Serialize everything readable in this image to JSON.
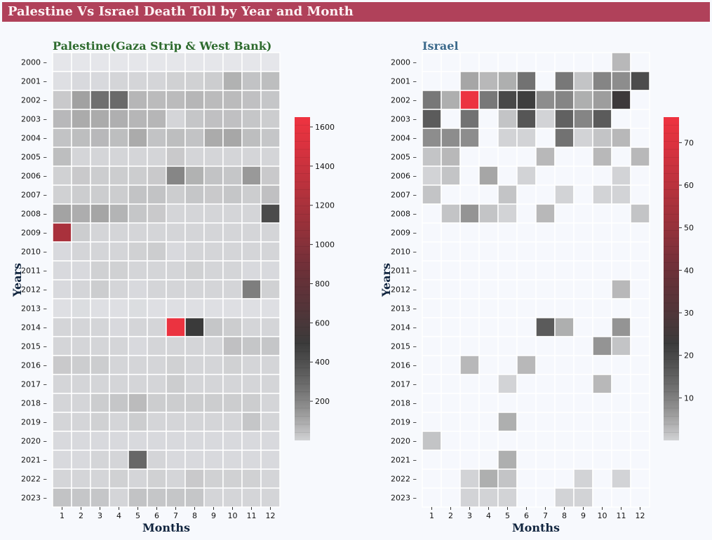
{
  "title": "Palestine Vs Israel Death Toll by Year and Month",
  "colors": {
    "banner": "#b0415a",
    "banner_text": "#fdf2f4",
    "background": "#f7f9fd",
    "palestine_title": "#2e6b2e",
    "israel_title": "#3d6b8c",
    "cmap": [
      "#f6f8fd",
      "#a8a8a8",
      "#3a3a3a",
      "#6a3038",
      "#ef3340"
    ]
  },
  "chart_data": [
    {
      "type": "heatmap",
      "title": "Palestine(Gaza Strip & West Bank)",
      "xlabel": "Months",
      "ylabel": "Years",
      "x": [
        1,
        2,
        3,
        4,
        5,
        6,
        7,
        8,
        9,
        10,
        11,
        12
      ],
      "y": [
        2000,
        2001,
        2002,
        2003,
        2004,
        2005,
        2006,
        2007,
        2008,
        2009,
        2010,
        2011,
        2012,
        2013,
        2014,
        2015,
        2016,
        2017,
        2018,
        2019,
        2020,
        2021,
        2022,
        2023
      ],
      "vmin": 0,
      "vmax": 1650,
      "colorbar_ticks": [
        200,
        400,
        600,
        800,
        1000,
        1200,
        1400,
        1600
      ],
      "values": [
        [
          5,
          5,
          5,
          5,
          5,
          5,
          5,
          5,
          5,
          5,
          5,
          5
        ],
        [
          10,
          15,
          15,
          20,
          20,
          20,
          25,
          25,
          30,
          80,
          45,
          55
        ],
        [
          35,
          120,
          270,
          290,
          70,
          60,
          60,
          70,
          60,
          60,
          50,
          40
        ],
        [
          65,
          95,
          95,
          85,
          70,
          70,
          20,
          40,
          50,
          50,
          40,
          30
        ],
        [
          45,
          55,
          65,
          55,
          95,
          45,
          55,
          45,
          95,
          105,
          55,
          40
        ],
        [
          55,
          20,
          20,
          20,
          20,
          20,
          35,
          20,
          20,
          20,
          20,
          20
        ],
        [
          25,
          35,
          30,
          30,
          30,
          35,
          195,
          80,
          45,
          40,
          140,
          35
        ],
        [
          25,
          30,
          30,
          30,
          45,
          45,
          30,
          40,
          35,
          40,
          30,
          50
        ],
        [
          115,
          90,
          110,
          75,
          40,
          35,
          20,
          20,
          20,
          20,
          20,
          420
        ],
        [
          1200,
          30,
          20,
          20,
          20,
          20,
          20,
          20,
          20,
          20,
          20,
          20
        ],
        [
          15,
          20,
          20,
          20,
          25,
          30,
          15,
          20,
          20,
          20,
          20,
          20
        ],
        [
          15,
          15,
          25,
          25,
          20,
          20,
          20,
          25,
          20,
          20,
          15,
          15
        ],
        [
          15,
          20,
          30,
          20,
          15,
          20,
          20,
          20,
          20,
          20,
          220,
          25
        ],
        [
          10,
          12,
          10,
          10,
          12,
          10,
          10,
          10,
          10,
          10,
          10,
          10
        ],
        [
          20,
          20,
          20,
          15,
          20,
          20,
          1620,
          500,
          40,
          30,
          20,
          20
        ],
        [
          20,
          20,
          20,
          20,
          15,
          20,
          20,
          20,
          20,
          50,
          40,
          40
        ],
        [
          35,
          30,
          30,
          20,
          20,
          20,
          25,
          20,
          20,
          25,
          20,
          20
        ],
        [
          20,
          20,
          20,
          20,
          20,
          20,
          30,
          20,
          20,
          20,
          20,
          20
        ],
        [
          20,
          20,
          30,
          40,
          60,
          30,
          30,
          30,
          30,
          30,
          30,
          20
        ],
        [
          20,
          20,
          25,
          20,
          30,
          20,
          20,
          20,
          20,
          20,
          40,
          20
        ],
        [
          15,
          15,
          15,
          15,
          15,
          15,
          15,
          15,
          15,
          15,
          15,
          15
        ],
        [
          15,
          15,
          20,
          20,
          300,
          20,
          15,
          15,
          15,
          15,
          15,
          15
        ],
        [
          20,
          20,
          20,
          25,
          20,
          25,
          20,
          35,
          25,
          25,
          25,
          20
        ],
        [
          45,
          40,
          40,
          20,
          45,
          40,
          40,
          40,
          20,
          20,
          20,
          20
        ]
      ]
    },
    {
      "type": "heatmap",
      "title": "Israel",
      "xlabel": "Months",
      "ylabel": "Years",
      "x": [
        1,
        2,
        3,
        4,
        5,
        6,
        7,
        8,
        9,
        10,
        11,
        12
      ],
      "y": [
        2000,
        2001,
        2002,
        2003,
        2004,
        2005,
        2006,
        2007,
        2008,
        2009,
        2010,
        2011,
        2012,
        2013,
        2014,
        2015,
        2016,
        2017,
        2018,
        2019,
        2020,
        2021,
        2022,
        2023
      ],
      "vmin": 0,
      "vmax": 76,
      "colorbar_ticks": [
        10,
        20,
        30,
        40,
        50,
        60,
        70
      ],
      "values": [
        [
          0,
          0,
          0,
          0,
          0,
          0,
          0,
          0,
          0,
          0,
          3,
          0
        ],
        [
          0,
          0,
          5,
          3,
          4,
          12,
          0,
          11,
          2,
          9,
          8,
          19
        ],
        [
          11,
          4,
          75,
          11,
          20,
          22,
          8,
          9,
          4,
          6,
          24,
          0
        ],
        [
          16,
          0,
          12,
          0,
          2,
          17,
          1,
          15,
          9,
          16,
          0,
          0
        ],
        [
          8,
          8,
          8,
          0,
          1,
          1,
          0,
          12,
          1,
          2,
          3,
          0
        ],
        [
          2,
          3,
          0,
          0,
          0,
          0,
          3,
          0,
          0,
          3,
          0,
          3
        ],
        [
          1,
          2,
          0,
          5,
          0,
          1,
          0,
          0,
          0,
          0,
          1,
          0
        ],
        [
          2,
          0,
          0,
          0,
          2,
          0,
          0,
          1,
          0,
          1,
          1,
          0
        ],
        [
          0,
          2,
          7,
          2,
          1,
          0,
          3,
          0,
          0,
          0,
          0,
          2
        ],
        [
          0,
          0,
          0,
          0,
          0,
          0,
          0,
          0,
          0,
          0,
          0,
          0
        ],
        [
          0,
          0,
          0,
          0,
          0,
          0,
          0,
          0,
          0,
          0,
          0,
          0
        ],
        [
          0,
          0,
          0,
          0,
          0,
          0,
          0,
          0,
          0,
          0,
          0,
          0
        ],
        [
          0,
          0,
          0,
          0,
          0,
          0,
          0,
          0,
          0,
          0,
          3,
          0
        ],
        [
          0,
          0,
          0,
          0,
          0,
          0,
          0,
          0,
          0,
          0,
          0,
          0
        ],
        [
          0,
          0,
          0,
          0,
          0,
          0,
          16,
          4,
          0,
          0,
          7,
          0
        ],
        [
          0,
          0,
          0,
          0,
          0,
          0,
          0,
          0,
          0,
          7,
          2,
          0
        ],
        [
          0,
          0,
          3,
          0,
          0,
          3,
          0,
          0,
          0,
          0,
          0,
          0
        ],
        [
          0,
          0,
          0,
          0,
          1,
          0,
          0,
          0,
          0,
          3,
          0,
          0
        ],
        [
          0,
          0,
          0,
          0,
          0,
          0,
          0,
          0,
          0,
          0,
          0,
          0
        ],
        [
          0,
          0,
          0,
          0,
          4,
          0,
          0,
          0,
          0,
          0,
          0,
          0
        ],
        [
          2,
          0,
          0,
          0,
          0,
          0,
          0,
          0,
          0,
          0,
          0,
          0
        ],
        [
          0,
          0,
          0,
          0,
          4,
          0,
          0,
          0,
          0,
          0,
          0,
          0
        ],
        [
          0,
          0,
          1,
          4,
          2,
          0,
          0,
          0,
          1,
          0,
          1,
          0
        ],
        [
          0,
          0,
          1,
          1,
          1,
          0,
          0,
          1,
          1,
          0,
          0,
          0
        ]
      ]
    }
  ]
}
